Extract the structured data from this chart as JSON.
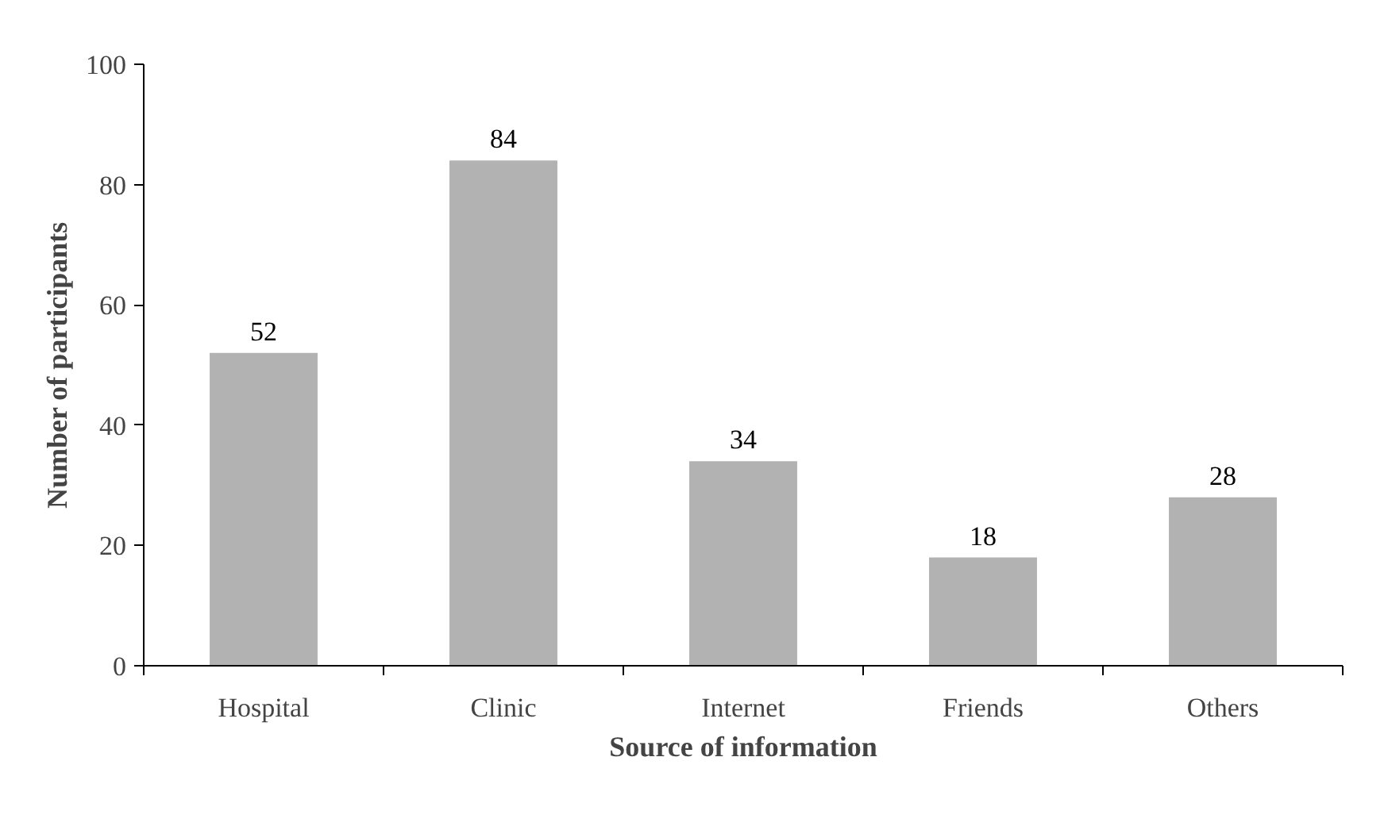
{
  "chart_data": {
    "type": "bar",
    "xlabel": "Source of information",
    "ylabel": "Number of participants",
    "categories": [
      "Hospital",
      "Clinic",
      "Internet",
      "Friends",
      "Others"
    ],
    "values": [
      52,
      84,
      34,
      18,
      28
    ],
    "color": "#b2b2b2",
    "ylim": [
      0,
      100
    ],
    "yticks": [
      0,
      20,
      40,
      60,
      80,
      100
    ],
    "grid": false,
    "data_labels": true
  }
}
